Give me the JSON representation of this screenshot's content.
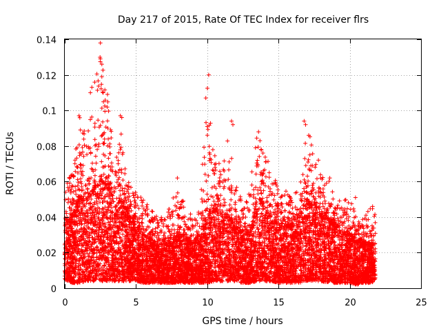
{
  "chart_data": {
    "type": "scatter",
    "title": "Day 217 of 2015, Rate Of TEC Index for receiver flrs",
    "xlabel": "GPS time / hours",
    "ylabel": "ROTI / TECUs",
    "xlim": [
      0,
      25
    ],
    "ylim": [
      0,
      0.14
    ],
    "x_ticks": [
      "0",
      "5",
      "10",
      "15",
      "20",
      "25"
    ],
    "y_ticks": [
      "0",
      "0.02",
      "0.04",
      "0.06",
      "0.08",
      "0.1",
      "0.12",
      "0.14"
    ],
    "grid": true,
    "marker": "+",
    "color": "#ff0000",
    "data_coverage_hours": [
      0,
      21.8
    ],
    "envelope": {
      "x": [
        0,
        0.5,
        1.0,
        1.5,
        2.0,
        2.5,
        3.0,
        3.5,
        4.0,
        4.5,
        5.0,
        5.5,
        6.0,
        6.5,
        7.0,
        7.5,
        8.0,
        8.5,
        9.0,
        9.5,
        10.0,
        10.5,
        11.0,
        11.5,
        12.0,
        12.5,
        13.0,
        13.5,
        14.0,
        14.5,
        15.0,
        15.5,
        16.0,
        16.5,
        17.0,
        17.5,
        18.0,
        18.5,
        19.0,
        19.5,
        20.0,
        20.5,
        21.0,
        21.5,
        21.8
      ],
      "upper": [
        0.063,
        0.065,
        0.098,
        0.085,
        0.112,
        0.138,
        0.109,
        0.07,
        0.097,
        0.06,
        0.055,
        0.05,
        0.047,
        0.04,
        0.04,
        0.048,
        0.062,
        0.045,
        0.04,
        0.045,
        0.12,
        0.075,
        0.068,
        0.095,
        0.06,
        0.05,
        0.058,
        0.088,
        0.075,
        0.072,
        0.055,
        0.055,
        0.05,
        0.06,
        0.095,
        0.073,
        0.063,
        0.062,
        0.05,
        0.05,
        0.052,
        0.04,
        0.04,
        0.046,
        0.044
      ],
      "dense_upper": [
        0.035,
        0.04,
        0.05,
        0.05,
        0.055,
        0.06,
        0.06,
        0.045,
        0.05,
        0.04,
        0.035,
        0.03,
        0.028,
        0.025,
        0.025,
        0.025,
        0.03,
        0.028,
        0.025,
        0.028,
        0.04,
        0.045,
        0.04,
        0.04,
        0.035,
        0.03,
        0.03,
        0.05,
        0.045,
        0.04,
        0.035,
        0.035,
        0.035,
        0.04,
        0.05,
        0.045,
        0.04,
        0.038,
        0.035,
        0.03,
        0.03,
        0.028,
        0.025,
        0.025,
        0.025
      ],
      "lower": [
        0.005,
        0.003,
        0.003,
        0.004,
        0.004,
        0.004,
        0.004,
        0.004,
        0.004,
        0.004,
        0.004,
        0.003,
        0.003,
        0.003,
        0.003,
        0.003,
        0.003,
        0.003,
        0.003,
        0.003,
        0.003,
        0.004,
        0.004,
        0.004,
        0.004,
        0.003,
        0.003,
        0.004,
        0.004,
        0.004,
        0.003,
        0.003,
        0.003,
        0.003,
        0.004,
        0.004,
        0.004,
        0.003,
        0.003,
        0.003,
        0.003,
        0.002,
        0.003,
        0.003,
        0.004
      ]
    },
    "notable_points": [
      {
        "x": 2.5,
        "y": 0.138
      },
      {
        "x": 2.5,
        "y": 0.129
      },
      {
        "x": 2.6,
        "y": 0.126
      },
      {
        "x": 2.6,
        "y": 0.119
      },
      {
        "x": 1.8,
        "y": 0.11
      },
      {
        "x": 1.9,
        "y": 0.113
      },
      {
        "x": 3.0,
        "y": 0.109
      },
      {
        "x": 2.7,
        "y": 0.11
      },
      {
        "x": 10.1,
        "y": 0.12
      },
      {
        "x": 9.9,
        "y": 0.107
      },
      {
        "x": 10.0,
        "y": 0.091
      },
      {
        "x": 1.0,
        "y": 0.097
      },
      {
        "x": 3.9,
        "y": 0.097
      },
      {
        "x": 4.0,
        "y": 0.096
      },
      {
        "x": 16.8,
        "y": 0.094
      },
      {
        "x": 16.9,
        "y": 0.092
      },
      {
        "x": 11.7,
        "y": 0.094
      },
      {
        "x": 11.8,
        "y": 0.092
      },
      {
        "x": 13.6,
        "y": 0.088
      },
      {
        "x": 1.1,
        "y": 0.089
      },
      {
        "x": 13.7,
        "y": 0.083
      },
      {
        "x": 10.2,
        "y": 0.073
      },
      {
        "x": 10.6,
        "y": 0.07
      },
      {
        "x": 14.1,
        "y": 0.071
      },
      {
        "x": 17.2,
        "y": 0.075
      },
      {
        "x": 17.8,
        "y": 0.072
      },
      {
        "x": 7.9,
        "y": 0.062
      },
      {
        "x": 18.6,
        "y": 0.062
      },
      {
        "x": 20.4,
        "y": 0.051
      },
      {
        "x": 21.6,
        "y": 0.046
      }
    ]
  }
}
